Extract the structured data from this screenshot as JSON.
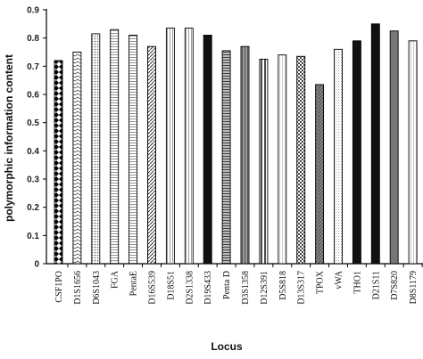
{
  "chart_data": {
    "type": "bar",
    "title": "",
    "xlabel": "Locus",
    "ylabel": "polymorphic information content",
    "ylim": [
      0,
      0.9
    ],
    "yticks": [
      "0",
      "0.1",
      "0.2",
      "0.3",
      "0.4",
      "0.5",
      "0.6",
      "0.7",
      "0.8",
      "0.9"
    ],
    "grid": false,
    "categories": [
      "CSF1PO",
      "D1S1656",
      "D6S1043",
      "FGA",
      "PentaE",
      "D16S539",
      "D18S51",
      "D2S1338",
      "D19S433",
      "Penta D",
      "D3S1358",
      "D12S391",
      "D5S818",
      "D13S317",
      "TPOX",
      "vWA",
      "THO1",
      "D21S11",
      "D7S820",
      "D8S1179"
    ],
    "values": [
      0.72,
      0.75,
      0.815,
      0.83,
      0.81,
      0.77,
      0.835,
      0.835,
      0.81,
      0.755,
      0.77,
      0.725,
      0.74,
      0.735,
      0.635,
      0.76,
      0.79,
      0.85,
      0.825,
      0.79
    ],
    "patterns": [
      "diamonds",
      "zigzag",
      "dots",
      "hlines",
      "hlines",
      "diag-dense",
      "vlines",
      "vlines",
      "solid-black",
      "hlines-dark",
      "vlines-grey",
      "vlines-bw",
      "vlines-light",
      "checker",
      "diag-grey",
      "dots-light",
      "solid-black",
      "solid-black",
      "solid-grey",
      "vlines-light"
    ]
  }
}
